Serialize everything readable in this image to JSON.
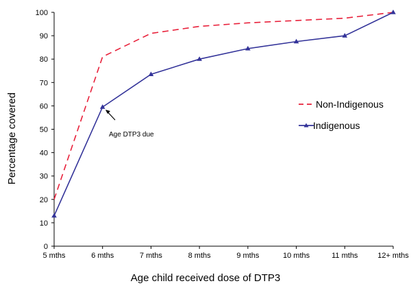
{
  "chart_data": {
    "type": "line",
    "categories": [
      "5 mths",
      "6 mths",
      "7 mths",
      "8 mths",
      "9 mths",
      "10 mths",
      "11 mths",
      "12+ mths"
    ],
    "series": [
      {
        "name": "Non-Indigenous",
        "values": [
          20,
          81,
          91,
          94,
          95.5,
          96.5,
          97.5,
          100
        ],
        "color": "#e8203a",
        "style": "dashed",
        "marker": "none"
      },
      {
        "name": "Indigenous",
        "values": [
          13,
          59.5,
          73.5,
          80,
          84.5,
          87.5,
          90,
          100
        ],
        "color": "#333399",
        "style": "solid",
        "marker": "triangle"
      }
    ],
    "xlabel": "Age child received dose of DTP3",
    "ylabel": "Percentage covered",
    "ylim": [
      0,
      100
    ],
    "yticks": [
      0,
      10,
      20,
      30,
      40,
      50,
      60,
      70,
      80,
      90,
      100
    ],
    "grid": false,
    "legend_position": "right-middle",
    "annotations": [
      {
        "text": "Age DTP3 due",
        "target_category": "6 mths",
        "target_value": 59.5
      }
    ]
  }
}
